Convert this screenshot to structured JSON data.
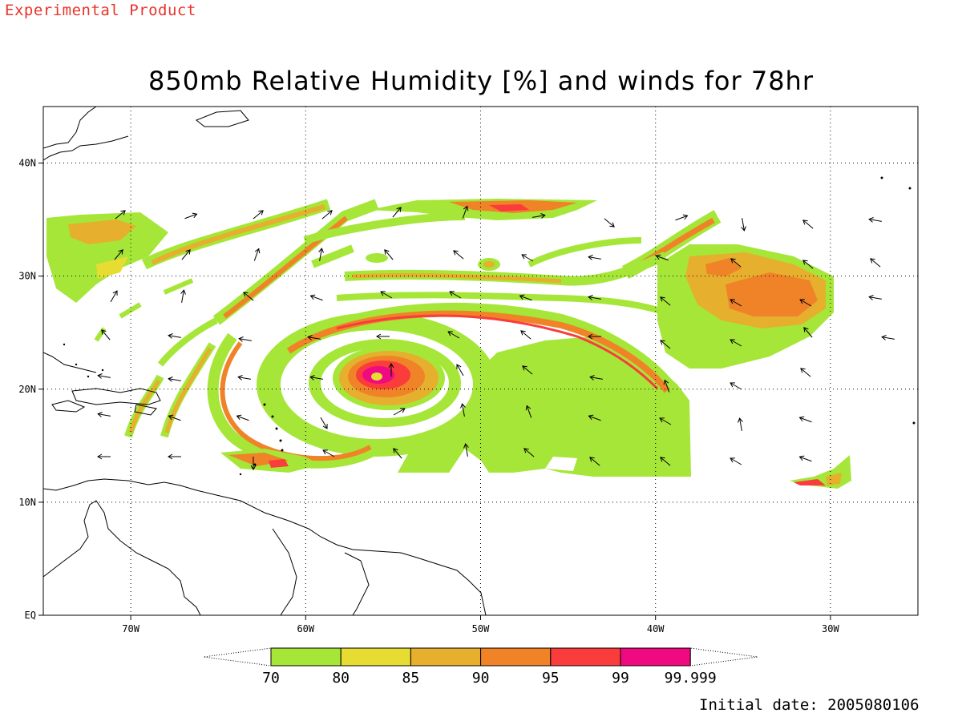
{
  "header": {
    "banner": "Experimental Product",
    "title": "850mb Relative Humidity [%] and winds for 78hr"
  },
  "footer": {
    "initial_date": "Initial date: 2005080106"
  },
  "map": {
    "lon_ticks": [
      {
        "lon": -70,
        "label": "70W"
      },
      {
        "lon": -60,
        "label": "60W"
      },
      {
        "lon": -50,
        "label": "50W"
      },
      {
        "lon": -40,
        "label": "40W"
      },
      {
        "lon": -30,
        "label": "30W"
      }
    ],
    "lat_ticks": [
      {
        "lat": 0,
        "label": "EQ"
      },
      {
        "lat": 10,
        "label": "10N"
      },
      {
        "lat": 20,
        "label": "20N"
      },
      {
        "lat": 30,
        "label": "30N"
      },
      {
        "lat": 40,
        "label": "40N"
      }
    ],
    "lon_range": [
      -75,
      -25
    ],
    "lat_range": [
      0,
      45
    ],
    "grid": "dotted"
  },
  "colorbar": {
    "bins": [
      {
        "label": "70",
        "color": "#a6e638"
      },
      {
        "label": "80",
        "color": "#e6dc32"
      },
      {
        "label": "85",
        "color": "#e6af2d"
      },
      {
        "label": "90",
        "color": "#f08228"
      },
      {
        "label": "95",
        "color": "#fa3c3c"
      },
      {
        "label": "99",
        "color": "#f00a82"
      }
    ],
    "last_label": "99.999"
  },
  "colors": {
    "rh70": "#a6e638",
    "rh80": "#e6dc32",
    "rh85": "#e6af2d",
    "rh90": "#f08228",
    "rh95": "#fa3c3c",
    "rh99": "#f00a82"
  }
}
